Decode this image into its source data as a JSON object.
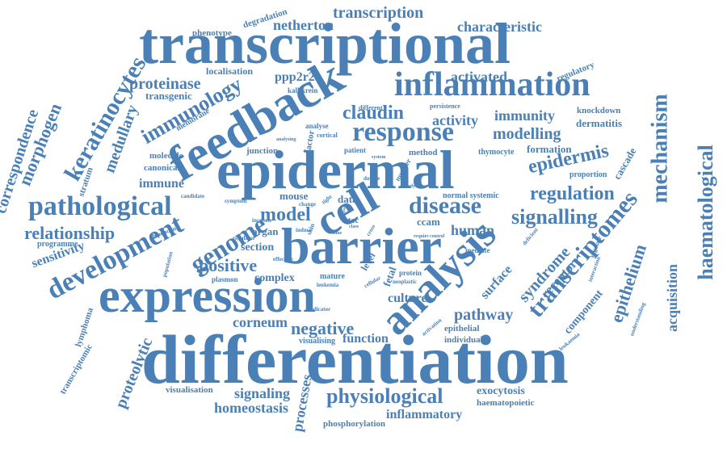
{
  "palette": {
    "primary": "#4a80b5",
    "dark": "#3f74aa",
    "light": "#5a8fc2",
    "background": "#ffffff"
  },
  "words": {
    "differentiation": "differentiation",
    "transcriptional": "transcriptional",
    "expression": "expression",
    "epidermal": "epidermal",
    "barrier": "barrier",
    "feedback": "feedback",
    "analysis": "analysis",
    "inflammation": "inflammation",
    "cell": "cell",
    "pathological": "pathological",
    "keratinocytes": "keratinocytes",
    "response": "response",
    "development": "development",
    "disease": "disease",
    "transcriptomes": "transcriptomes",
    "physiological": "physiological",
    "genome": "genome",
    "immunology": "immunology",
    "signalling": "signalling",
    "haematological": "haematological",
    "mechanism": "mechanism",
    "regulation": "regulation",
    "epidermis": "epidermis",
    "claudin": "claudin",
    "positive": "positive",
    "negative": "negative",
    "model": "model",
    "epithelium": "epithelium",
    "relationship": "relationship",
    "morphogen": "morphogen",
    "correspondence": "correspondence",
    "medullary": "medullary",
    "proteolytic": "proteolytic",
    "modelling": "modelling",
    "proteinase": "proteinase",
    "syndrome": "syndrome",
    "pathway": "pathway",
    "transcription": "transcription",
    "netherton": "netherton",
    "characteristic": "characteristic",
    "activity": "activity",
    "immunity": "immunity",
    "activated": "activated",
    "signaling": "signaling",
    "acquisition": "acquisition",
    "homeostasis": "homeostasis",
    "human": "human",
    "function": "function",
    "corneum": "corneum",
    "sensitivity": "sensitivity",
    "immune": "immune",
    "receptor": "receptor",
    "processes": "processes",
    "inflammatory": "inflammatory",
    "surface": "surface",
    "ppp2r2a": "ppp2r2a",
    "culture": "culture",
    "complex": "complex",
    "section": "section",
    "exocytosis": "exocytosis",
    "component": "component",
    "dermatitis": "dermatitis",
    "formation": "formation",
    "cascade": "cascade",
    "transgenic": "transgenic",
    "localisation": "localisation",
    "organ": "organ",
    "data": "data",
    "mouse": "mouse",
    "fetal": "fetal",
    "ccam": "ccam",
    "phenotype": "phenotype",
    "degradation": "degradation",
    "regulatory": "regulatory",
    "knockdown": "knockdown",
    "junction": "junction",
    "method": "method",
    "canonical": "canonical",
    "molecule": "molecule",
    "visualisation": "visualisation",
    "haematopoietic": "haematopoietic",
    "phosphorylation": "phosphorylation",
    "epithelial": "epithelial",
    "individual": "individual",
    "visualising": "visualising",
    "transcriptomic": "transcriptomic",
    "lymphoma": "lymphoma",
    "stratum": "stratum",
    "programme": "programme",
    "membrane": "membrane",
    "kallikrein": "kallikrein",
    "proportion": "proportion",
    "thymocyte": "thymocyte",
    "normal_systemic": "normal systemic",
    "mature": "mature",
    "protein": "protein",
    "mediate": "mediate",
    "plasmon": "plasmon",
    "level": "level",
    "ctec": "ctec",
    "factor": "factor",
    "patient": "patient",
    "number": "number",
    "analyse": "analyse",
    "cortical": "cortical",
    "different": "different",
    "persistence": "persistence",
    "candidate": "candidate",
    "symptom": "symptom",
    "dependent": "dependent",
    "increase": "increase",
    "regulator": "regulator",
    "effective": "effective",
    "leukemia": "leukemia",
    "neoplastic": "neoplastic",
    "cellular": "cellular",
    "indicator": "indicator",
    "change": "change",
    "skin": "skin",
    "induce": "induce",
    "cross": "cross",
    "double": "double",
    "tight": "tight",
    "activation": "activation",
    "deficient": "deficient",
    "leukaemia": "leukaemia",
    "regulate": "regulate",
    "understanding": "understanding",
    "interaction": "interaction",
    "population": "population",
    "system": "system",
    "require": "require",
    "control": "control",
    "analysing": "analysing",
    "study": "study",
    "time": "time",
    "class": "class",
    "loss": "loss"
  }
}
